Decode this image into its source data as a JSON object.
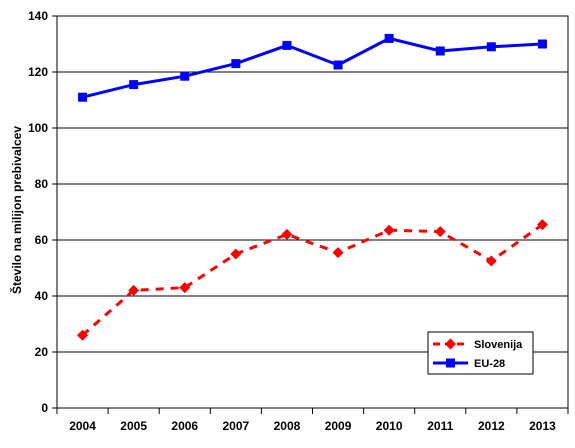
{
  "chart_data": {
    "type": "line",
    "title": "",
    "xlabel": "",
    "ylabel": "Število na milijon prebivalcev",
    "categories": [
      "2004",
      "2005",
      "2006",
      "2007",
      "2008",
      "2009",
      "2010",
      "2011",
      "2012",
      "2013"
    ],
    "ylim": [
      0,
      140
    ],
    "yticks": [
      0,
      20,
      40,
      60,
      80,
      100,
      120,
      140
    ],
    "grid": "horizontal",
    "legend_position": "bottom-right",
    "series": [
      {
        "name": "Slovenija",
        "values": [
          26,
          42,
          43,
          55,
          62,
          55.5,
          63.5,
          63,
          52.5,
          65.5
        ],
        "color": "#ff0000",
        "line_style": "dashed",
        "marker": "diamond"
      },
      {
        "name": "EU-28",
        "values": [
          111,
          115.5,
          118.5,
          123,
          129.5,
          122.5,
          132,
          127.5,
          129,
          130
        ],
        "color": "#0000ff",
        "line_style": "solid",
        "marker": "square"
      }
    ]
  }
}
